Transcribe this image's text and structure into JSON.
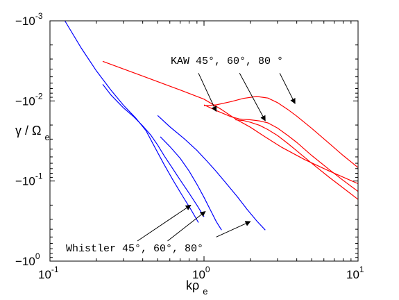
{
  "chart_data": {
    "type": "line",
    "title": "",
    "xlabel": {
      "main": "kρ",
      "sub": "e"
    },
    "ylabel": {
      "main": "γ / Ω",
      "sub": "e"
    },
    "x_scale": "log",
    "y_scale": "log",
    "y_sign": "negative",
    "xlim": [
      0.1,
      10
    ],
    "ylim": [
      -0.001,
      -1
    ],
    "grid": false,
    "x_ticks": [
      {
        "value": 0.1,
        "base": "10",
        "exp": "-1"
      },
      {
        "value": 1,
        "base": "10",
        "exp": "0"
      },
      {
        "value": 10,
        "base": "10",
        "exp": "1"
      }
    ],
    "y_ticks": [
      {
        "value": -0.001,
        "base": "−10",
        "exp": "-3"
      },
      {
        "value": -0.01,
        "base": "−10",
        "exp": "-2"
      },
      {
        "value": -0.1,
        "base": "−10",
        "exp": "-1"
      },
      {
        "value": -1,
        "base": "−10",
        "exp": "0"
      }
    ],
    "colors": {
      "kaw": "#ff0000",
      "whistler": "#0000ff",
      "arrow": "#000000"
    },
    "series": [
      {
        "family": "kaw",
        "color": "#ff0000",
        "x": [
          0.22,
          0.4,
          0.7,
          1.0,
          1.3,
          1.6,
          2.0,
          2.5,
          3.2,
          4.5,
          6.5,
          10
        ],
        "y": [
          -0.0032,
          -0.0049,
          -0.0073,
          -0.0095,
          -0.0128,
          -0.0168,
          -0.0213,
          -0.0282,
          -0.038,
          -0.054,
          -0.075,
          -0.108
        ]
      },
      {
        "family": "kaw",
        "color": "#ff0000",
        "x": [
          1.0,
          1.2,
          1.5,
          1.8,
          2.2,
          2.6,
          3.0,
          3.5,
          4.0,
          5.0,
          6.5,
          8.0,
          10
        ],
        "y": [
          -0.0115,
          -0.0112,
          -0.0102,
          -0.0093,
          -0.0088,
          -0.0092,
          -0.0105,
          -0.0128,
          -0.0155,
          -0.022,
          -0.034,
          -0.048,
          -0.068
        ]
      },
      {
        "family": "kaw",
        "color": "#ff0000",
        "x": [
          1.0,
          1.2,
          1.5,
          1.7,
          2.0,
          2.3,
          2.6,
          3.0,
          3.5,
          4.0,
          5.0,
          6.5,
          8.0,
          10
        ],
        "y": [
          -0.0112,
          -0.0132,
          -0.0158,
          -0.0168,
          -0.0172,
          -0.0178,
          -0.0188,
          -0.0218,
          -0.027,
          -0.033,
          -0.048,
          -0.072,
          -0.098,
          -0.135
        ]
      },
      {
        "family": "kaw",
        "color": "#ff0000",
        "x": [
          1.6,
          1.8,
          2.0,
          2.3,
          2.6,
          3.0,
          3.5,
          4.0,
          5.0,
          6.5,
          8.0,
          10
        ],
        "y": [
          -0.0172,
          -0.0176,
          -0.0185,
          -0.0202,
          -0.0228,
          -0.027,
          -0.034,
          -0.042,
          -0.06,
          -0.09,
          -0.122,
          -0.17
        ]
      },
      {
        "family": "whistler",
        "color": "#0000ff",
        "x": [
          0.125,
          0.16,
          0.2,
          0.25,
          0.3,
          0.36,
          0.42,
          0.48,
          0.55,
          0.63,
          0.72,
          0.82,
          0.92
        ],
        "y": [
          -0.001,
          -0.0022,
          -0.0042,
          -0.0074,
          -0.0113,
          -0.0163,
          -0.0235,
          -0.038,
          -0.062,
          -0.098,
          -0.15,
          -0.225,
          -0.33
        ]
      },
      {
        "family": "whistler",
        "color": "#0000ff",
        "x": [
          0.22,
          0.25,
          0.3,
          0.35,
          0.4,
          0.45,
          0.5,
          0.55,
          0.62,
          0.7,
          0.8,
          0.9,
          1.0
        ],
        "y": [
          -0.0062,
          -0.0085,
          -0.0122,
          -0.0158,
          -0.0205,
          -0.0265,
          -0.0355,
          -0.048,
          -0.068,
          -0.097,
          -0.142,
          -0.2,
          -0.28
        ]
      },
      {
        "family": "whistler",
        "color": "#0000ff",
        "x": [
          0.52,
          0.6,
          0.7,
          0.8,
          0.9,
          1.0,
          1.1,
          1.2,
          1.3
        ],
        "y": [
          -0.028,
          -0.037,
          -0.052,
          -0.075,
          -0.11,
          -0.16,
          -0.23,
          -0.32,
          -0.41
        ]
      },
      {
        "family": "whistler",
        "color": "#0000ff",
        "x": [
          0.5,
          0.6,
          0.75,
          0.9,
          1.05,
          1.2,
          1.4,
          1.65,
          1.9,
          2.2,
          2.5
        ],
        "y": [
          -0.0152,
          -0.021,
          -0.03,
          -0.0415,
          -0.057,
          -0.076,
          -0.108,
          -0.158,
          -0.225,
          -0.315,
          -0.41
        ]
      }
    ],
    "annotations": [
      {
        "text": "KAW 45°, 60°, 80 °",
        "position": "upper-right",
        "arrows": [
          {
            "from": [
              0.92,
              -0.0045
            ],
            "to": [
              1.2,
              -0.0135
            ]
          },
          {
            "from": [
              1.7,
              -0.0045
            ],
            "to": [
              2.5,
              -0.0177
            ]
          },
          {
            "from": [
              3.1,
              -0.0045
            ],
            "to": [
              3.9,
              -0.0108
            ]
          }
        ]
      },
      {
        "text": "Whistler 45°, 60°, 80°",
        "position": "bottom-left",
        "arrows": [
          {
            "from": [
              0.37,
              -0.56
            ],
            "to": [
              0.82,
              -0.2
            ]
          },
          {
            "from": [
              0.58,
              -0.56
            ],
            "to": [
              1.02,
              -0.24
            ]
          },
          {
            "from": [
              1.2,
              -0.5
            ],
            "to": [
              2.0,
              -0.32
            ]
          }
        ]
      }
    ]
  }
}
